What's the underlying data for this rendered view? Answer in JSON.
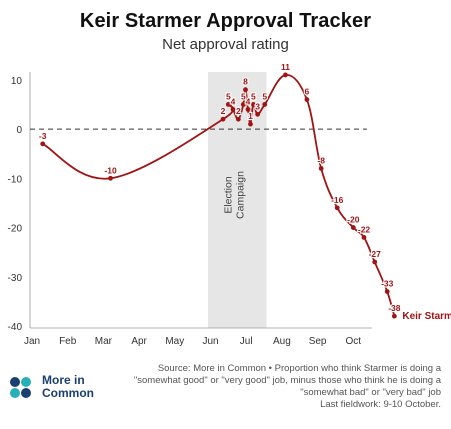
{
  "header": {
    "title": "Keir Starmer Approval Tracker",
    "subtitle": "Net approval rating"
  },
  "chart_data": {
    "type": "line",
    "title": "Keir Starmer Approval Tracker",
    "subtitle": "Net approval rating",
    "xlabel": "",
    "ylabel": "",
    "x_ticks": [
      "Jan",
      "Feb",
      "Mar",
      "Apr",
      "May",
      "Jun",
      "Jul",
      "Aug",
      "Sep",
      "Oct"
    ],
    "y_ticks": [
      10,
      0,
      -10,
      -20,
      -30,
      -40
    ],
    "ylim": [
      -40,
      12
    ],
    "grid": false,
    "zero_line": "dashed",
    "shaded_band": {
      "label": "Election Campaign",
      "x_start": 5.93,
      "x_end": 7.57
    },
    "series": [
      {
        "name": "Keir Starmer",
        "color": "#a01414",
        "points": [
          {
            "x": 1.3,
            "y": -3,
            "label": "-3"
          },
          {
            "x": 3.2,
            "y": -10,
            "label": "-10"
          },
          {
            "x": 6.35,
            "y": 2,
            "label": "2"
          },
          {
            "x": 6.5,
            "y": 5,
            "label": "5"
          },
          {
            "x": 6.63,
            "y": 4,
            "label": "4"
          },
          {
            "x": 6.78,
            "y": 2,
            "label": "2"
          },
          {
            "x": 6.92,
            "y": 5,
            "label": "5"
          },
          {
            "x": 6.98,
            "y": 8,
            "label": "8"
          },
          {
            "x": 7.05,
            "y": 4,
            "label": "4"
          },
          {
            "x": 7.12,
            "y": 1,
            "label": "1"
          },
          {
            "x": 7.2,
            "y": 5,
            "label": "5"
          },
          {
            "x": 7.32,
            "y": 3,
            "label": "3"
          },
          {
            "x": 7.52,
            "y": 5,
            "label": "5"
          },
          {
            "x": 8.1,
            "y": 11,
            "label": "11"
          },
          {
            "x": 8.7,
            "y": 6,
            "label": "6"
          },
          {
            "x": 9.1,
            "y": -8,
            "label": "-8"
          },
          {
            "x": 9.55,
            "y": -16,
            "label": "-16"
          },
          {
            "x": 10.0,
            "y": -20,
            "label": "-20"
          },
          {
            "x": 10.3,
            "y": -22,
            "label": "-22"
          },
          {
            "x": 10.6,
            "y": -27,
            "label": "-27"
          },
          {
            "x": 10.95,
            "y": -33,
            "label": "-33"
          },
          {
            "x": 11.15,
            "y": -38,
            "label": "-38"
          }
        ]
      }
    ]
  },
  "footer": {
    "source_line1": "Source: More in Common • Proportion who think Starmer is doing a",
    "source_line2": "\"somewhat good\" or \"very good\" job, minus those who think he is doing a",
    "source_line3": "\"somewhat bad\" or \"very bad\" job",
    "source_line4": "Last fieldwork: 9-10 October.",
    "logo_line1": "More in",
    "logo_line2": "Common",
    "logo_color": "#1a3f73",
    "logo_accent": "#28b0b8"
  }
}
